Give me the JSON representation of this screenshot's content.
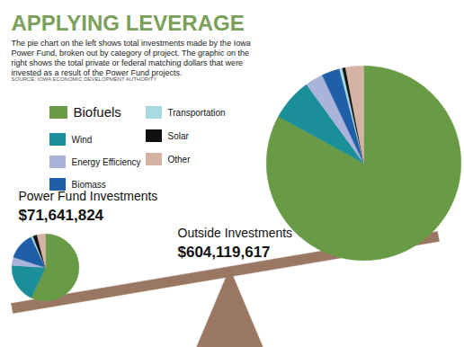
{
  "title": "APPLYING LEVERAGE",
  "subtitle": "The pie chart on the left shows total investments made by the Iowa Power Fund, broken out by category of project. The graphic on the right shows the total private or federal matching dollars that were invested as a result of the Power Fund projects.",
  "source": "SOURCE: IOWA ECONOMIC DEVELOPMENT AUTHORITY",
  "chart_data": [
    {
      "type": "pie",
      "title": "Power Fund Investments",
      "total": {
        "value": 71641824,
        "label": "$71,641,824"
      },
      "categories": [
        "Biofuels",
        "Wind",
        "Energy Efficiency",
        "Biomass",
        "Transportation",
        "Solar",
        "Other"
      ],
      "values": [
        57,
        19,
        4,
        13,
        1,
        2,
        4
      ],
      "colors": [
        "#699b47",
        "#1b8f99",
        "#aab4db",
        "#1f5ea8",
        "#a6d9e0",
        "#111111",
        "#d4b3a5"
      ]
    },
    {
      "type": "pie",
      "title": "Outside Investments",
      "total": {
        "value": 604119617,
        "label": "$604,119,617"
      },
      "categories": [
        "Biofuels",
        "Wind",
        "Energy Efficiency",
        "Biomass",
        "Transportation",
        "Solar",
        "Other"
      ],
      "values": [
        83,
        7,
        3,
        3,
        0.5,
        0.5,
        3
      ],
      "colors": [
        "#699b47",
        "#1b8f99",
        "#aab4db",
        "#1f5ea8",
        "#a6d9e0",
        "#111111",
        "#d4b3a5"
      ]
    }
  ]
}
